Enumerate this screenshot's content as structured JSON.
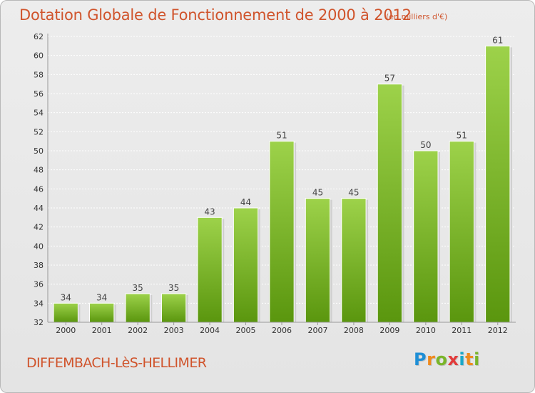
{
  "header": {
    "title": "Dotation Globale de Fonctionnement de 2000 à 2012",
    "unit": "(en milliers d'€)"
  },
  "footer": {
    "commune": "DIFFEMBACH-LèS-HELLIMER",
    "logo_text": "Proxiti"
  },
  "colors": {
    "accent": "#d0542c",
    "bar_top": "#9dd24a",
    "bar_bottom": "#5a960e"
  },
  "chart_data": {
    "type": "bar",
    "title": "Dotation Globale de Fonctionnement de 2000 à 2012",
    "subtitle": "(en milliers d'€)",
    "xlabel": "",
    "ylabel": "",
    "categories": [
      "2000",
      "2001",
      "2002",
      "2003",
      "2004",
      "2005",
      "2006",
      "2007",
      "2008",
      "2009",
      "2010",
      "2011",
      "2012"
    ],
    "values": [
      34,
      34,
      35,
      35,
      43,
      44,
      51,
      45,
      45,
      57,
      50,
      51,
      61
    ],
    "ylim": [
      32,
      62
    ],
    "yticks": [
      32,
      34,
      36,
      38,
      40,
      42,
      44,
      46,
      48,
      50,
      52,
      54,
      56,
      58,
      60,
      62
    ],
    "grid": true,
    "legend": "none"
  }
}
